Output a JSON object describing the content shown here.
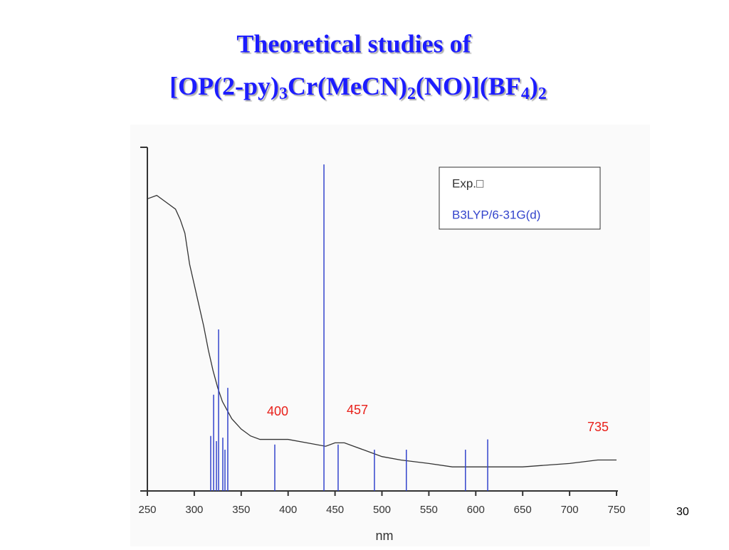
{
  "chart_data": {
    "type": "line",
    "title_line1": "Theoretical studies of",
    "title_line2_parts": [
      "[OP(2-py)",
      "3",
      "Cr(MeCN)",
      "2",
      "(NO)](BF",
      "4",
      ")",
      "2"
    ],
    "xlabel": "nm",
    "xlim": [
      250,
      750
    ],
    "xticks": [
      250,
      300,
      350,
      400,
      450,
      500,
      550,
      600,
      650,
      700,
      750
    ],
    "ylim": [
      0,
      1
    ],
    "series": [
      {
        "name": "Exp.□",
        "style": "line",
        "color": "#333333",
        "x": [
          250,
          260,
          270,
          280,
          285,
          290,
          295,
          300,
          305,
          310,
          315,
          320,
          325,
          330,
          340,
          350,
          360,
          370,
          380,
          400,
          420,
          440,
          450,
          460,
          470,
          480,
          490,
          500,
          520,
          550,
          575,
          600,
          650,
          700,
          730,
          750
        ],
        "values": [
          0.85,
          0.86,
          0.84,
          0.82,
          0.79,
          0.75,
          0.66,
          0.6,
          0.54,
          0.48,
          0.41,
          0.35,
          0.3,
          0.26,
          0.21,
          0.18,
          0.16,
          0.15,
          0.15,
          0.15,
          0.14,
          0.13,
          0.14,
          0.14,
          0.13,
          0.12,
          0.11,
          0.1,
          0.09,
          0.08,
          0.07,
          0.07,
          0.07,
          0.08,
          0.09,
          0.09
        ]
      },
      {
        "name": "B3LYP/6-31G(d)",
        "style": "stick",
        "color": "#3344cc",
        "x": [
          317.5,
          320.6,
          323.6,
          325.9,
          330.4,
          332.7,
          335.7,
          385.8,
          438.2,
          453.3,
          492,
          526,
          589,
          612.7
        ],
        "values": [
          0.16,
          0.28,
          0.145,
          0.47,
          0.155,
          0.12,
          0.3,
          0.135,
          0.95,
          0.135,
          0.12,
          0.12,
          0.12,
          0.15
        ]
      }
    ],
    "annotations": [
      "400",
      "457",
      "735"
    ],
    "page_number": "30"
  }
}
